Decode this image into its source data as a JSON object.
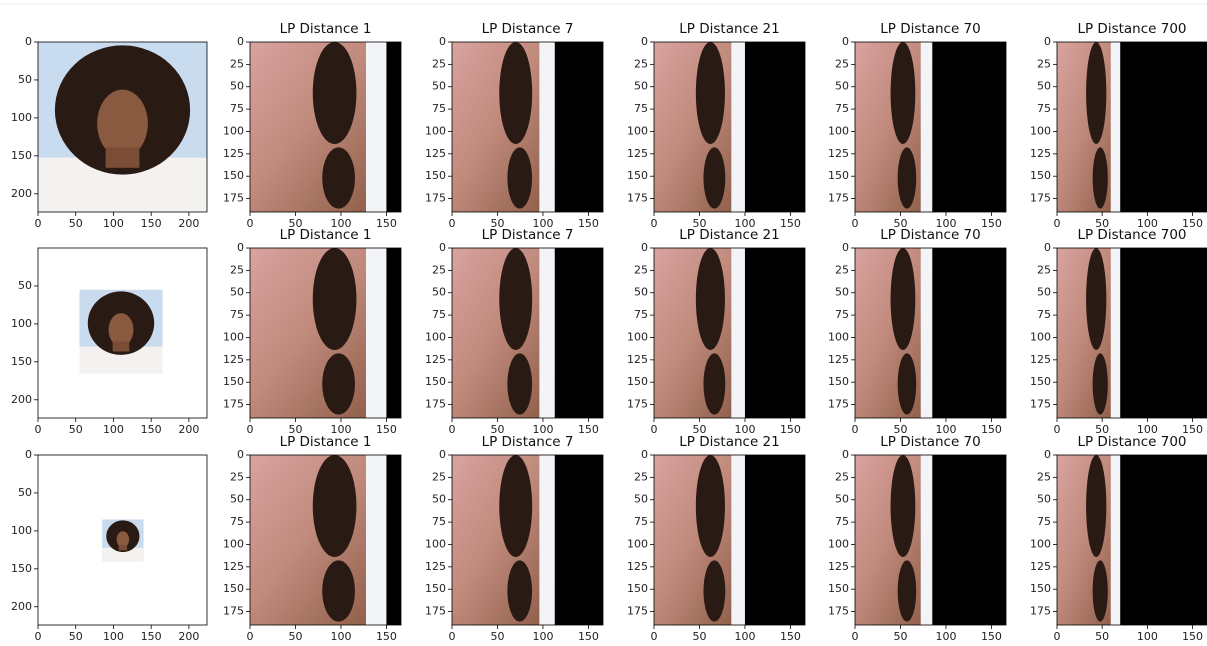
{
  "chart_data": [
    {
      "type": "image",
      "xlim": [
        0,
        224
      ],
      "ylim": [
        224,
        0
      ],
      "xticks": [
        0,
        50,
        100,
        150,
        200
      ],
      "yticks": [
        0,
        50,
        100,
        150,
        200
      ]
    },
    {
      "type": "image",
      "title": "LP Distance 1",
      "xlim": [
        0,
        166
      ],
      "ylim": [
        190,
        0
      ],
      "xticks": [
        0,
        50,
        100,
        150
      ],
      "yticks": [
        0,
        25,
        50,
        75,
        100,
        125,
        150,
        175
      ]
    },
    {
      "type": "image",
      "title": "LP Distance 7",
      "xlim": [
        0,
        166
      ],
      "ylim": [
        190,
        0
      ],
      "xticks": [
        0,
        50,
        100,
        150
      ],
      "yticks": [
        0,
        25,
        50,
        75,
        100,
        125,
        150,
        175
      ]
    },
    {
      "type": "image",
      "title": "LP Distance 21",
      "xlim": [
        0,
        166
      ],
      "ylim": [
        190,
        0
      ],
      "xticks": [
        0,
        50,
        100,
        150
      ],
      "yticks": [
        0,
        25,
        50,
        75,
        100,
        125,
        150,
        175
      ]
    },
    {
      "type": "image",
      "title": "LP Distance 70",
      "xlim": [
        0,
        166
      ],
      "ylim": [
        190,
        0
      ],
      "xticks": [
        0,
        50,
        100,
        150
      ],
      "yticks": [
        0,
        25,
        50,
        75,
        100,
        125,
        150,
        175
      ]
    },
    {
      "type": "image",
      "title": "LP Distance 700",
      "xlim": [
        0,
        166
      ],
      "ylim": [
        190,
        0
      ],
      "xticks": [
        0,
        50,
        100,
        150
      ],
      "yticks": [
        0,
        25,
        50,
        75,
        100,
        125,
        150,
        175
      ]
    },
    {
      "type": "image",
      "xlim": [
        0,
        224
      ],
      "ylim": [
        224,
        0
      ],
      "xticks": [
        0,
        50,
        100,
        150,
        200
      ],
      "yticks": [
        50,
        100,
        150,
        200
      ]
    },
    {
      "type": "image",
      "title": "LP Distance 1",
      "xlim": [
        0,
        166
      ],
      "ylim": [
        190,
        0
      ],
      "xticks": [
        0,
        50,
        100,
        150
      ],
      "yticks": [
        0,
        25,
        50,
        75,
        100,
        125,
        150,
        175
      ]
    },
    {
      "type": "image",
      "title": "LP Distance 7",
      "xlim": [
        0,
        166
      ],
      "ylim": [
        190,
        0
      ],
      "xticks": [
        0,
        50,
        100,
        150
      ],
      "yticks": [
        0,
        25,
        50,
        75,
        100,
        125,
        150,
        175
      ]
    },
    {
      "type": "image",
      "title": "LP Distance 21",
      "xlim": [
        0,
        166
      ],
      "ylim": [
        190,
        0
      ],
      "xticks": [
        0,
        50,
        100,
        150
      ],
      "yticks": [
        0,
        25,
        50,
        75,
        100,
        125,
        150,
        175
      ]
    },
    {
      "type": "image",
      "title": "LP Distance 70",
      "xlim": [
        0,
        166
      ],
      "ylim": [
        190,
        0
      ],
      "xticks": [
        0,
        50,
        100,
        150
      ],
      "yticks": [
        0,
        25,
        50,
        75,
        100,
        125,
        150,
        175
      ]
    },
    {
      "type": "image",
      "title": "LP Distance 700",
      "xlim": [
        0,
        166
      ],
      "ylim": [
        190,
        0
      ],
      "xticks": [
        0,
        50,
        100,
        150
      ],
      "yticks": [
        0,
        25,
        50,
        75,
        100,
        125,
        150,
        175
      ]
    },
    {
      "type": "image",
      "xlim": [
        0,
        224
      ],
      "ylim": [
        224,
        0
      ],
      "xticks": [
        0,
        50,
        100,
        150,
        200
      ],
      "yticks": [
        0,
        50,
        100,
        150,
        200
      ]
    },
    {
      "type": "image",
      "title": "LP Distance 1",
      "xlim": [
        0,
        166
      ],
      "ylim": [
        190,
        0
      ],
      "xticks": [
        0,
        50,
        100,
        150
      ],
      "yticks": [
        0,
        25,
        50,
        75,
        100,
        125,
        150,
        175
      ]
    },
    {
      "type": "image",
      "title": "LP Distance 7",
      "xlim": [
        0,
        166
      ],
      "ylim": [
        190,
        0
      ],
      "xticks": [
        0,
        50,
        100,
        150
      ],
      "yticks": [
        0,
        25,
        50,
        75,
        100,
        125,
        150,
        175
      ]
    },
    {
      "type": "image",
      "title": "LP Distance 21",
      "xlim": [
        0,
        166
      ],
      "ylim": [
        190,
        0
      ],
      "xticks": [
        0,
        50,
        100,
        150
      ],
      "yticks": [
        0,
        25,
        50,
        75,
        100,
        125,
        150,
        175
      ]
    },
    {
      "type": "image",
      "title": "LP Distance 70",
      "xlim": [
        0,
        166
      ],
      "ylim": [
        190,
        0
      ],
      "xticks": [
        0,
        50,
        100,
        150
      ],
      "yticks": [
        0,
        25,
        50,
        75,
        100,
        125,
        150,
        175
      ]
    },
    {
      "type": "image",
      "title": "LP Distance 700",
      "xlim": [
        0,
        166
      ],
      "ylim": [
        190,
        0
      ],
      "xticks": [
        0,
        50,
        100,
        150
      ],
      "yticks": [
        0,
        25,
        50,
        75,
        100,
        125,
        150,
        175
      ]
    }
  ]
}
